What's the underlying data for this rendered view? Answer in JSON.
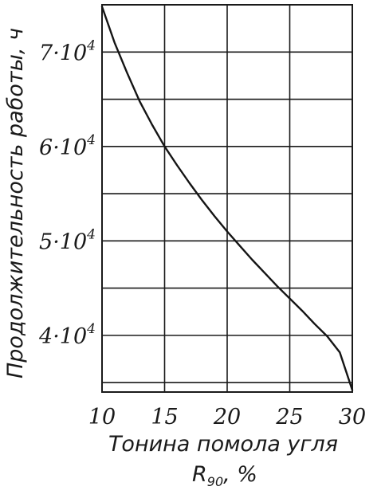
{
  "chart_data": {
    "type": "line",
    "title": "",
    "xlabel": "Тонина помола угля",
    "xlabel_line2": {
      "symbol": "R",
      "subscript": "90",
      "suffix": ", %"
    },
    "ylabel": "Продолжительность работы, ч",
    "x_ticks": [
      "10",
      "15",
      "20",
      "25",
      "30"
    ],
    "y_ticks": [
      {
        "mantissa": "7·10",
        "exponent": "4",
        "value": 70000
      },
      {
        "mantissa": "6·10",
        "exponent": "4",
        "value": 60000
      },
      {
        "mantissa": "5·10",
        "exponent": "4",
        "value": 50000
      },
      {
        "mantissa": "4·10",
        "exponent": "4",
        "value": 40000
      }
    ],
    "xlim": [
      10,
      30
    ],
    "ylim": [
      34000,
      75000
    ],
    "grid": true,
    "series": [
      {
        "x": [
          10,
          11,
          12,
          13,
          14,
          15,
          16,
          17,
          18,
          19,
          20,
          21,
          22,
          23,
          24,
          25,
          26,
          27,
          28,
          29,
          30
        ],
        "y": [
          74800,
          71000,
          67800,
          64800,
          62300,
          60000,
          58000,
          56100,
          54300,
          52600,
          51000,
          49500,
          48000,
          46600,
          45200,
          43900,
          42600,
          41200,
          39900,
          38200,
          34200
        ]
      }
    ],
    "line_color": "#141414",
    "grid_color": "#1a1a1a"
  }
}
